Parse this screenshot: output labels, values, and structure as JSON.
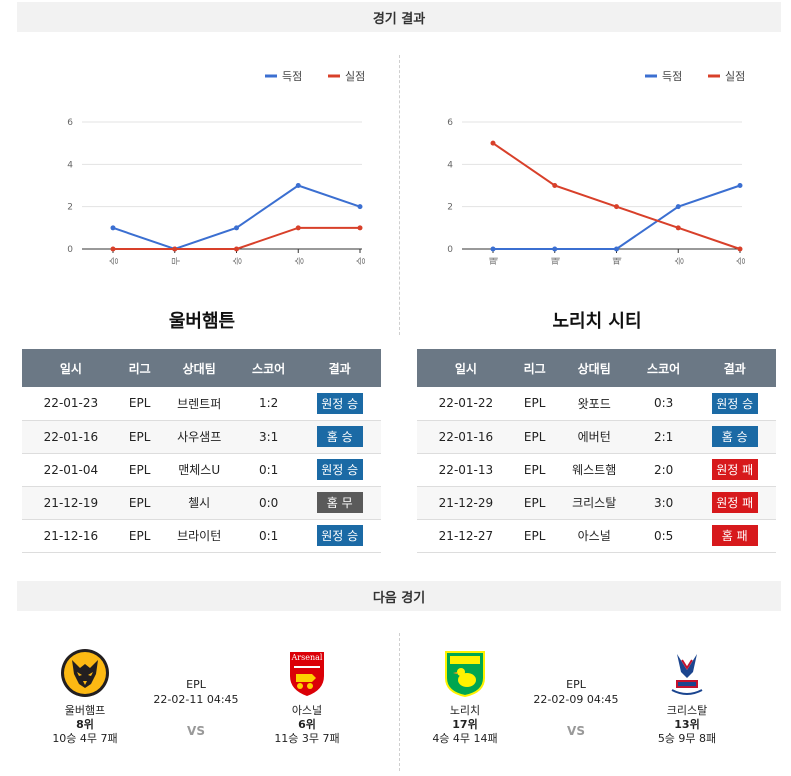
{
  "sections": {
    "results_title": "경기 결과",
    "next_title": "다음 경기"
  },
  "legend": {
    "scored": "득점",
    "conceded": "실점"
  },
  "colors": {
    "scored": "#3b6fd1",
    "conceded": "#d8402a",
    "badge_win": "#1b6aa5",
    "badge_draw": "#5a5a5a",
    "badge_loss": "#d7191c",
    "header": "#6b7885"
  },
  "chart_data": [
    {
      "type": "line",
      "categories": [
        "승",
        "무",
        "승",
        "승",
        "승"
      ],
      "series": [
        {
          "name": "득점",
          "values": [
            1,
            0,
            1,
            3,
            2
          ]
        },
        {
          "name": "실점",
          "values": [
            0,
            0,
            0,
            1,
            1
          ]
        }
      ],
      "yticks": [
        0,
        2,
        4,
        6
      ],
      "ylim": [
        0,
        6
      ],
      "legend_position": "top-right",
      "grid": true
    },
    {
      "type": "line",
      "categories": [
        "패",
        "패",
        "패",
        "승",
        "승"
      ],
      "series": [
        {
          "name": "득점",
          "values": [
            0,
            0,
            0,
            2,
            3
          ]
        },
        {
          "name": "실점",
          "values": [
            5,
            3,
            2,
            1,
            0
          ]
        }
      ],
      "yticks": [
        0,
        2,
        4,
        6
      ],
      "ylim": [
        0,
        6
      ],
      "legend_position": "top-right",
      "grid": true
    }
  ],
  "table_headers": [
    "일시",
    "리그",
    "상대팀",
    "스코어",
    "결과"
  ],
  "left": {
    "team": "울버햄튼",
    "rows": [
      {
        "date": "22-01-23",
        "league": "EPL",
        "opponent": "브렌트퍼",
        "score": "1:2",
        "result": "원정 승",
        "kind": "win"
      },
      {
        "date": "22-01-16",
        "league": "EPL",
        "opponent": "사우샘프",
        "score": "3:1",
        "result": "홈 승",
        "kind": "win"
      },
      {
        "date": "22-01-04",
        "league": "EPL",
        "opponent": "맨체스U",
        "score": "0:1",
        "result": "원정 승",
        "kind": "win"
      },
      {
        "date": "21-12-19",
        "league": "EPL",
        "opponent": "첼시",
        "score": "0:0",
        "result": "홈 무",
        "kind": "draw"
      },
      {
        "date": "21-12-16",
        "league": "EPL",
        "opponent": "브라이턴",
        "score": "0:1",
        "result": "원정 승",
        "kind": "win"
      }
    ]
  },
  "right": {
    "team": "노리치 시티",
    "rows": [
      {
        "date": "22-01-22",
        "league": "EPL",
        "opponent": "왓포드",
        "score": "0:3",
        "result": "원정 승",
        "kind": "win"
      },
      {
        "date": "22-01-16",
        "league": "EPL",
        "opponent": "에버턴",
        "score": "2:1",
        "result": "홈 승",
        "kind": "win"
      },
      {
        "date": "22-01-13",
        "league": "EPL",
        "opponent": "웨스트햄",
        "score": "2:0",
        "result": "원정 패",
        "kind": "loss"
      },
      {
        "date": "21-12-29",
        "league": "EPL",
        "opponent": "크리스탈",
        "score": "3:0",
        "result": "원정 패",
        "kind": "loss"
      },
      {
        "date": "21-12-27",
        "league": "EPL",
        "opponent": "아스널",
        "score": "0:5",
        "result": "홈 패",
        "kind": "loss"
      }
    ]
  },
  "next_matches": [
    {
      "league": "EPL",
      "datetime": "22-02-11 04:45",
      "vs": "VS",
      "home": {
        "name": "울버햄프",
        "rank": "8위",
        "record": "10승 4무 7패",
        "logo": "wolves-logo"
      },
      "away": {
        "name": "아스널",
        "rank": "6위",
        "record": "11승 3무 7패",
        "logo": "arsenal-logo",
        "logo_text": "Arsenal"
      }
    },
    {
      "league": "EPL",
      "datetime": "22-02-09 04:45",
      "vs": "VS",
      "home": {
        "name": "노리치",
        "rank": "17위",
        "record": "4승 4무 14패",
        "logo": "norwich-logo"
      },
      "away": {
        "name": "크리스탈",
        "rank": "13위",
        "record": "5승 9무 8패",
        "logo": "crystal-palace-logo"
      }
    }
  ]
}
